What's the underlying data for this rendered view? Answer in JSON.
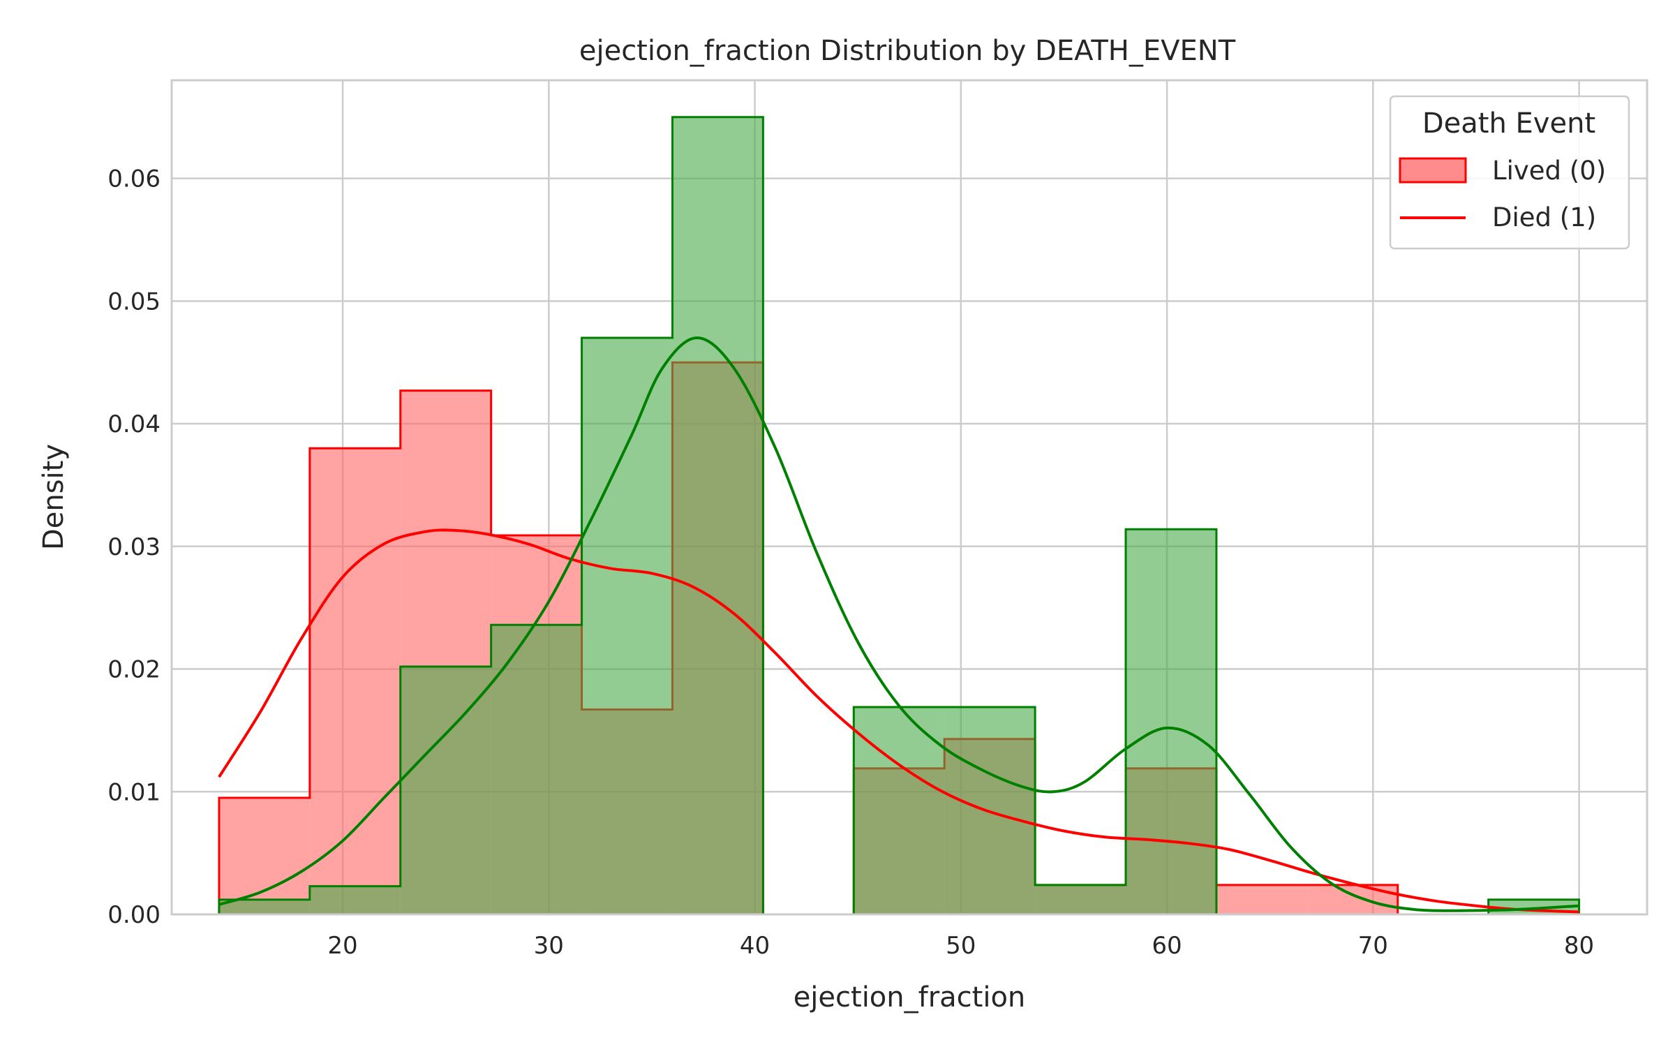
{
  "chart_data": {
    "type": "histogram",
    "title": "ejection_fraction Distribution by DEATH_EVENT",
    "xlabel": "ejection_fraction",
    "ylabel": "Density",
    "xlim": [
      11.7,
      83.3
    ],
    "ylim": [
      0,
      0.068
    ],
    "xticks": [
      20,
      30,
      40,
      50,
      60,
      70,
      80
    ],
    "yticks": [
      0.0,
      0.01,
      0.02,
      0.03,
      0.04,
      0.05,
      0.06
    ],
    "ytick_labels": [
      "0.00",
      "0.01",
      "0.02",
      "0.03",
      "0.04",
      "0.05",
      "0.06"
    ],
    "grid": true,
    "bin_edges": [
      14,
      18.4,
      22.8,
      27.2,
      31.6,
      36.0,
      40.4,
      44.8,
      49.2,
      53.6,
      58.0,
      62.4,
      66.8,
      71.2,
      75.6,
      80.0
    ],
    "legend": {
      "title": "Death Event",
      "placement": "top-right",
      "entries": [
        "Lived (0)",
        "Died (1)"
      ]
    },
    "series": [
      {
        "key": "red",
        "color": "#ff0000",
        "fill": "#ff6666",
        "density": [
          0.0095,
          0.038,
          0.0427,
          0.0309,
          0.0167,
          0.045,
          0,
          0.0119,
          0.0143,
          0.0024,
          0.0119,
          0.0024,
          0.0024,
          0,
          0
        ],
        "kde": {
          "x": [
            14,
            16,
            18,
            20,
            22,
            24,
            25.5,
            27,
            29,
            31,
            33,
            35,
            37,
            39,
            41,
            43,
            45,
            47,
            49,
            51,
            53,
            55,
            57,
            59,
            61,
            63,
            65,
            67,
            69,
            71,
            73,
            75,
            77,
            80
          ],
          "y": [
            0.0112,
            0.0165,
            0.0225,
            0.0275,
            0.0302,
            0.0312,
            0.0313,
            0.031,
            0.0302,
            0.029,
            0.0282,
            0.0278,
            0.0267,
            0.0245,
            0.0213,
            0.0178,
            0.0148,
            0.0122,
            0.0101,
            0.0086,
            0.0076,
            0.0068,
            0.0063,
            0.0061,
            0.0058,
            0.0053,
            0.0044,
            0.0034,
            0.0025,
            0.0017,
            0.0011,
            0.0007,
            0.0004,
            0.0002
          ]
        }
      },
      {
        "key": "green",
        "color": "#008000",
        "fill": "#4aaa4a",
        "density": [
          0.0012,
          0.0023,
          0.0202,
          0.0236,
          0.047,
          0.065,
          0,
          0.0169,
          0.0169,
          0.0024,
          0.0314,
          0,
          0,
          0,
          0.0012
        ],
        "kde": {
          "x": [
            14,
            16,
            18,
            20,
            22,
            24,
            26,
            28,
            30,
            32,
            34,
            35.5,
            37.2,
            39,
            41,
            43,
            45,
            47,
            49,
            51,
            53,
            54.5,
            56,
            58,
            60,
            62,
            64,
            66,
            68,
            70,
            72,
            74,
            77,
            80
          ],
          "y": [
            0.0008,
            0.0018,
            0.0035,
            0.006,
            0.0095,
            0.013,
            0.0165,
            0.0205,
            0.0255,
            0.032,
            0.039,
            0.0445,
            0.047,
            0.0445,
            0.038,
            0.0295,
            0.0222,
            0.017,
            0.0138,
            0.0118,
            0.0104,
            0.01,
            0.0108,
            0.0135,
            0.0152,
            0.0138,
            0.0098,
            0.0055,
            0.0025,
            0.001,
            0.0004,
            0.0003,
            0.0004,
            0.0007
          ]
        }
      }
    ]
  }
}
